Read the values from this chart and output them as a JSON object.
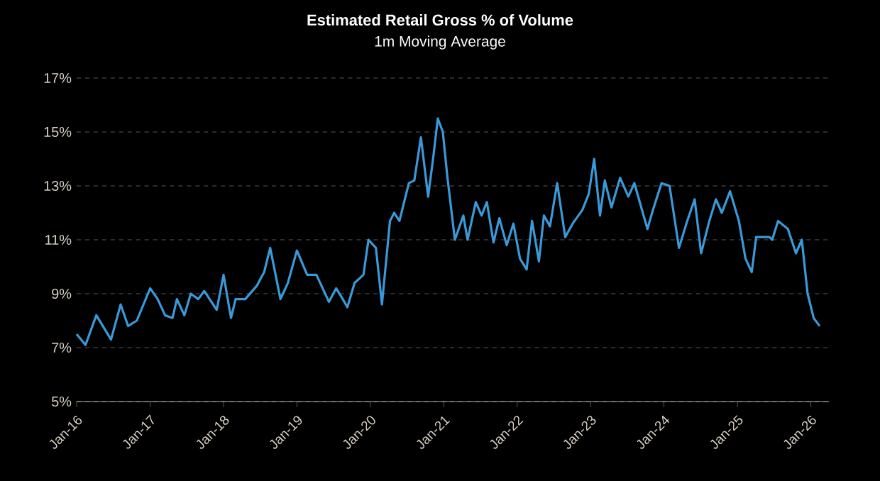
{
  "chart_data": {
    "type": "line",
    "title": "Estimated Retail Gross % of Volume",
    "subtitle": "1m Moving Average",
    "x": [
      "2016-01-01",
      "2016-02-14",
      "2016-04-08",
      "2016-06-20",
      "2016-08-07",
      "2016-09-13",
      "2016-10-26",
      "2017-01-01",
      "2017-02-07",
      "2017-03-16",
      "2017-04-22",
      "2017-05-14",
      "2017-06-20",
      "2017-07-22",
      "2017-08-28",
      "2017-09-27",
      "2017-11-28",
      "2018-01-01",
      "2018-02-07",
      "2018-03-02",
      "2018-04-19",
      "2018-06-16",
      "2018-07-22",
      "2018-08-21",
      "2018-10-11",
      "2018-11-17",
      "2019-01-01",
      "2019-02-21",
      "2019-04-08",
      "2019-06-09",
      "2019-07-15",
      "2019-08-17",
      "2019-09-09",
      "2019-10-15",
      "2019-11-28",
      "2019-12-23",
      "2020-01-29",
      "2020-02-28",
      "2020-04-08",
      "2020-04-29",
      "2020-05-25",
      "2020-07-11",
      "2020-08-07",
      "2020-09-09",
      "2020-10-15",
      "2020-11-10",
      "2020-12-02",
      "2020-12-27",
      "2021-01-19",
      "2021-02-25",
      "2021-04-08",
      "2021-04-29",
      "2021-06-09",
      "2021-07-08",
      "2021-08-03",
      "2021-09-05",
      "2021-10-04",
      "2021-11-10",
      "2021-12-13",
      "2022-01-15",
      "2022-02-17",
      "2022-03-16",
      "2022-04-19",
      "2022-05-14",
      "2022-06-13",
      "2022-07-19",
      "2022-08-28",
      "2022-10-04",
      "2022-11-21",
      "2022-12-23",
      "2023-01-19",
      "2023-02-17",
      "2023-03-13",
      "2023-04-15",
      "2023-05-28",
      "2023-07-08",
      "2023-08-07",
      "2023-10-11",
      "2023-11-07",
      "2023-12-20",
      "2024-01-29",
      "2024-03-16",
      "2024-04-26",
      "2024-06-02",
      "2024-07-04",
      "2024-08-14",
      "2024-09-16",
      "2024-10-15",
      "2024-11-25",
      "2025-01-08",
      "2025-02-10",
      "2025-03-13",
      "2025-04-04",
      "2025-06-09",
      "2025-06-23",
      "2025-07-22",
      "2025-09-09",
      "2025-10-19",
      "2025-11-17",
      "2025-12-16",
      "2026-01-15",
      "2026-02-14"
    ],
    "series": [
      {
        "color": "#3a9ad9",
        "values": [
          7.5,
          7.1,
          8.2,
          7.3,
          8.6,
          7.8,
          8.0,
          9.2,
          8.8,
          8.2,
          8.1,
          8.8,
          8.2,
          9.0,
          8.8,
          9.1,
          8.4,
          9.7,
          8.1,
          8.8,
          8.8,
          9.3,
          9.8,
          10.7,
          8.8,
          9.4,
          10.6,
          9.7,
          9.7,
          8.7,
          9.2,
          8.8,
          8.5,
          9.4,
          9.7,
          11.0,
          10.7,
          8.6,
          11.7,
          12.0,
          11.7,
          13.1,
          13.2,
          14.8,
          12.6,
          14.1,
          15.5,
          15.0,
          13.3,
          11.0,
          11.9,
          11.0,
          12.4,
          11.9,
          12.4,
          10.9,
          11.8,
          10.8,
          11.6,
          10.3,
          9.9,
          11.7,
          10.2,
          11.9,
          11.5,
          13.1,
          11.1,
          11.6,
          12.1,
          12.7,
          14.0,
          11.9,
          13.2,
          12.2,
          13.3,
          12.6,
          13.1,
          11.4,
          12.1,
          13.1,
          13.0,
          10.7,
          11.7,
          12.5,
          10.5,
          11.7,
          12.5,
          12.0,
          12.8,
          11.7,
          10.3,
          9.8,
          11.1,
          11.1,
          11.0,
          11.7,
          11.4,
          10.5,
          11.0,
          9.0,
          8.1,
          7.8
        ]
      }
    ],
    "xlim": [
      "2016-01-01",
      "2026-04-01"
    ],
    "ylim": [
      5,
      17
    ],
    "xticks": [
      {
        "value": "2016-01-01",
        "label": "Jan-16"
      },
      {
        "value": "2017-01-01",
        "label": "Jan-17"
      },
      {
        "value": "2018-01-01",
        "label": "Jan-18"
      },
      {
        "value": "2019-01-01",
        "label": "Jan-19"
      },
      {
        "value": "2020-01-01",
        "label": "Jan-20"
      },
      {
        "value": "2021-01-01",
        "label": "Jan-21"
      },
      {
        "value": "2022-01-01",
        "label": "Jan-22"
      },
      {
        "value": "2023-01-01",
        "label": "Jan-23"
      },
      {
        "value": "2024-01-01",
        "label": "Jan-24"
      },
      {
        "value": "2025-01-01",
        "label": "Jan-25"
      },
      {
        "value": "2026-01-01",
        "label": "Jan-26"
      }
    ],
    "yticks": [
      {
        "value": 5,
        "label": "5%"
      },
      {
        "value": 7,
        "label": "7%"
      },
      {
        "value": 9,
        "label": "9%"
      },
      {
        "value": 11,
        "label": "11%"
      },
      {
        "value": 13,
        "label": "13%"
      },
      {
        "value": 15,
        "label": "15%"
      },
      {
        "value": 17,
        "label": "17%"
      }
    ],
    "grid": "y",
    "marker": "none",
    "line_style": "solid"
  }
}
